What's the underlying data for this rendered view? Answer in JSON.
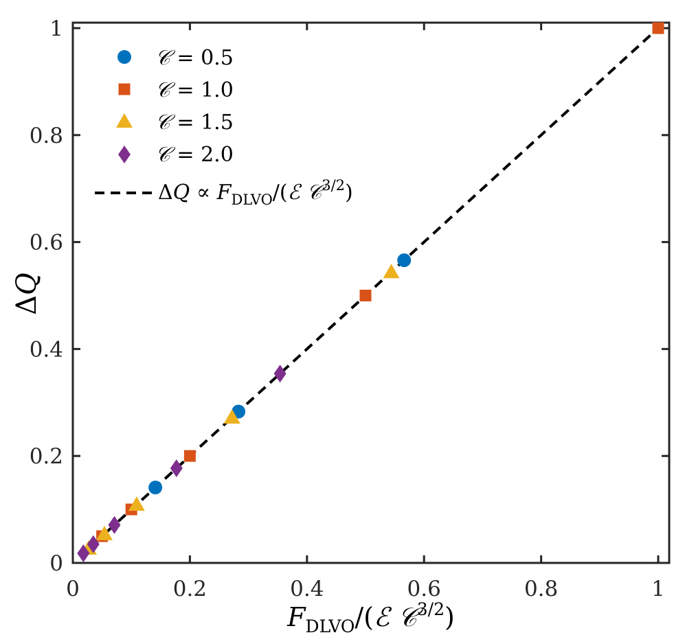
{
  "chart_data": {
    "type": "scatter",
    "title": "",
    "xlabel": {
      "text": "F_DLVO/(ℰ 𝒞^{3/2})",
      "parts": {
        "F": "F",
        "dlvo": "DLVO",
        "open": "/(",
        "E": "ℰ",
        "C": "𝒞",
        "exp": "3/2",
        "close": ")"
      }
    },
    "ylabel": {
      "text": "ΔQ",
      "parts": {
        "delta": "Δ",
        "Q": "Q"
      }
    },
    "xlim": [
      0,
      1
    ],
    "ylim": [
      0,
      1
    ],
    "x_ticks": [
      0,
      0.2,
      0.4,
      0.6,
      0.8,
      1
    ],
    "x_tick_labels": [
      "0",
      "0.2",
      "0.4",
      "0.6",
      "0.8",
      "1"
    ],
    "y_ticks": [
      0,
      0.2,
      0.4,
      0.6,
      0.8,
      1
    ],
    "y_tick_labels": [
      "0",
      "0.2",
      "0.4",
      "0.6",
      "0.8",
      "1"
    ],
    "grid": false,
    "legend_position": "top-left",
    "series": [
      {
        "name": "𝒞 = 0.5",
        "label_parts": {
          "sym": "𝒞",
          "rest": " = 0.5"
        },
        "marker": "circle",
        "color": "#0072BD",
        "x": [
          0.141,
          0.283,
          0.566
        ],
        "y": [
          0.141,
          0.283,
          0.566
        ]
      },
      {
        "name": "𝒞 = 1.0",
        "label_parts": {
          "sym": "𝒞",
          "rest": " = 1.0"
        },
        "marker": "square",
        "color": "#D95319",
        "x": [
          0.05,
          0.1,
          0.2,
          0.5,
          1.0
        ],
        "y": [
          0.05,
          0.1,
          0.2,
          0.5,
          1.0
        ]
      },
      {
        "name": "𝒞 = 1.5",
        "label_parts": {
          "sym": "𝒞",
          "rest": " = 1.5"
        },
        "marker": "triangle",
        "color": "#EDB120",
        "x": [
          0.027,
          0.054,
          0.109,
          0.272,
          0.544
        ],
        "y": [
          0.027,
          0.054,
          0.109,
          0.272,
          0.544
        ]
      },
      {
        "name": "𝒞 = 2.0",
        "label_parts": {
          "sym": "𝒞",
          "rest": " = 2.0"
        },
        "marker": "diamond",
        "color": "#7E2F8E",
        "x": [
          0.018,
          0.035,
          0.071,
          0.177,
          0.354
        ],
        "y": [
          0.018,
          0.035,
          0.071,
          0.177,
          0.354
        ]
      }
    ],
    "fit_line": {
      "name": "ΔQ ∝ F_DLVO/(ℰ 𝒞^{3/2})",
      "label_parts": {
        "delta": "Δ",
        "Q": "Q",
        "prop": " ∝ ",
        "F": "F",
        "dlvo": "DLVO",
        "open": "/(",
        "E": "ℰ",
        "C": "𝒞",
        "exp": "3/2",
        "close": ")"
      },
      "style": "dashed",
      "color": "#000000",
      "x": [
        0.018,
        1.0
      ],
      "y": [
        0.018,
        1.0
      ]
    },
    "colors": {
      "axis": "#262626",
      "background": "#ffffff"
    }
  }
}
